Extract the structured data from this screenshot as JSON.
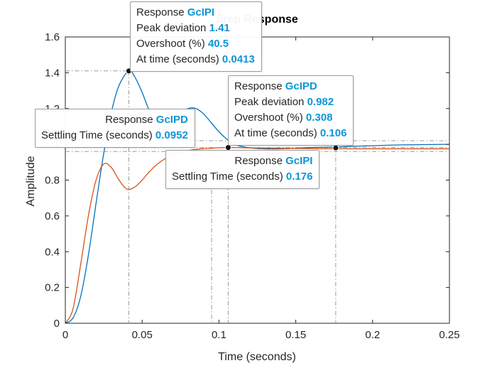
{
  "chart_data": {
    "type": "line",
    "title": "Step Response",
    "xlabel": "Time (seconds)",
    "ylabel": "Amplitude",
    "xlim": [
      0,
      0.25
    ],
    "ylim": [
      0,
      1.6
    ],
    "x_ticks": [
      "0",
      "0.05",
      "0.1",
      "0.15",
      "0.2",
      "0.25"
    ],
    "y_ticks": [
      "0",
      "0.2",
      "0.4",
      "0.6",
      "0.8",
      "1",
      "1.2",
      "1.4",
      "1.6"
    ],
    "grid": false,
    "series": [
      {
        "name": "GcIPI",
        "color": "#0072BD",
        "x": [
          0,
          0.005,
          0.01,
          0.015,
          0.02,
          0.025,
          0.03,
          0.035,
          0.0413,
          0.045,
          0.05,
          0.055,
          0.06,
          0.065,
          0.07,
          0.075,
          0.08,
          0.085,
          0.09,
          0.095,
          0.1,
          0.105,
          0.11,
          0.12,
          0.13,
          0.14,
          0.15,
          0.16,
          0.176,
          0.19,
          0.2,
          0.21,
          0.22,
          0.23,
          0.24,
          0.25
        ],
        "y": [
          0,
          0.03,
          0.15,
          0.38,
          0.67,
          0.95,
          1.18,
          1.33,
          1.41,
          1.38,
          1.29,
          1.18,
          1.1,
          1.08,
          1.12,
          1.17,
          1.2,
          1.2,
          1.17,
          1.12,
          1.07,
          1.03,
          1.0,
          0.98,
          0.975,
          0.975,
          0.978,
          0.982,
          0.985,
          0.99,
          0.992,
          0.995,
          0.997,
          0.998,
          0.999,
          1.0
        ]
      },
      {
        "name": "GcIPD",
        "color": "#D95319",
        "x": [
          0,
          0.005,
          0.01,
          0.015,
          0.02,
          0.025,
          0.03,
          0.035,
          0.04,
          0.045,
          0.05,
          0.055,
          0.06,
          0.065,
          0.07,
          0.075,
          0.08,
          0.085,
          0.09,
          0.095,
          0.106,
          0.12,
          0.14,
          0.16,
          0.18,
          0.2,
          0.22,
          0.25
        ],
        "y": [
          0,
          0.08,
          0.33,
          0.6,
          0.8,
          0.89,
          0.87,
          0.8,
          0.75,
          0.76,
          0.8,
          0.85,
          0.89,
          0.92,
          0.94,
          0.955,
          0.965,
          0.972,
          0.976,
          0.978,
          0.982,
          0.98,
          0.978,
          0.976,
          0.975,
          0.975,
          0.975,
          0.975
        ]
      }
    ],
    "reference_lines": {
      "GcIPI_peak": {
        "x": 0.0413,
        "y": 1.41
      },
      "GcIPD_peak": {
        "x": 0.106,
        "y": 0.982
      },
      "GcIPD_settling": {
        "x": 0.0952,
        "y": 0.96
      },
      "GcIPI_settling": {
        "x": 0.176,
        "y": 0.98
      },
      "settling_band": [
        0.96,
        1.02
      ]
    },
    "annotations": [
      {
        "id": "tip-gcipi-peak",
        "lines": [
          {
            "label": "Response",
            "value": "GcIPI"
          },
          {
            "label": "Peak deviation",
            "value": "1.41"
          },
          {
            "label": "Overshoot (%)",
            "value": "40.5"
          },
          {
            "label": "At time (seconds)",
            "value": "0.0413"
          }
        ]
      },
      {
        "id": "tip-gcipd-peak",
        "lines": [
          {
            "label": "Response",
            "value": "GcIPD"
          },
          {
            "label": "Peak deviation",
            "value": "0.982"
          },
          {
            "label": "Overshoot (%)",
            "value": "0.308"
          },
          {
            "label": "At time (seconds)",
            "value": "0.106"
          }
        ]
      },
      {
        "id": "tip-gcipd-settling",
        "lines": [
          {
            "label": "Response",
            "value": "GcIPD"
          },
          {
            "label": "Settling Time (seconds)",
            "value": "0.0952"
          }
        ]
      },
      {
        "id": "tip-gcipi-settling",
        "lines": [
          {
            "label": "Response",
            "value": "GcIPI"
          },
          {
            "label": "Settling Time (seconds)",
            "value": "0.176"
          }
        ]
      }
    ]
  }
}
